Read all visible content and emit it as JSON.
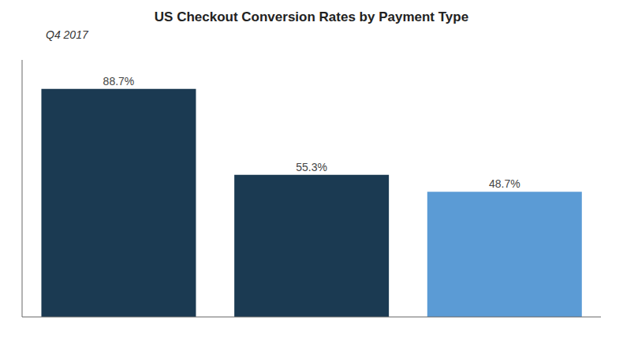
{
  "chart_data": {
    "type": "bar",
    "title": "US Checkout Conversion Rates by Payment Type",
    "subtitle": "Q4 2017",
    "categories": [
      null,
      null,
      null
    ],
    "values": [
      88.7,
      55.3,
      48.7
    ],
    "value_labels": [
      "88.7%",
      "55.3%",
      "48.7%"
    ],
    "colors": [
      "#1b3a52",
      "#1b3a52",
      "#5b9bd5"
    ],
    "ylim": [
      0,
      100
    ],
    "data_labels": true,
    "tick_labels": false
  }
}
